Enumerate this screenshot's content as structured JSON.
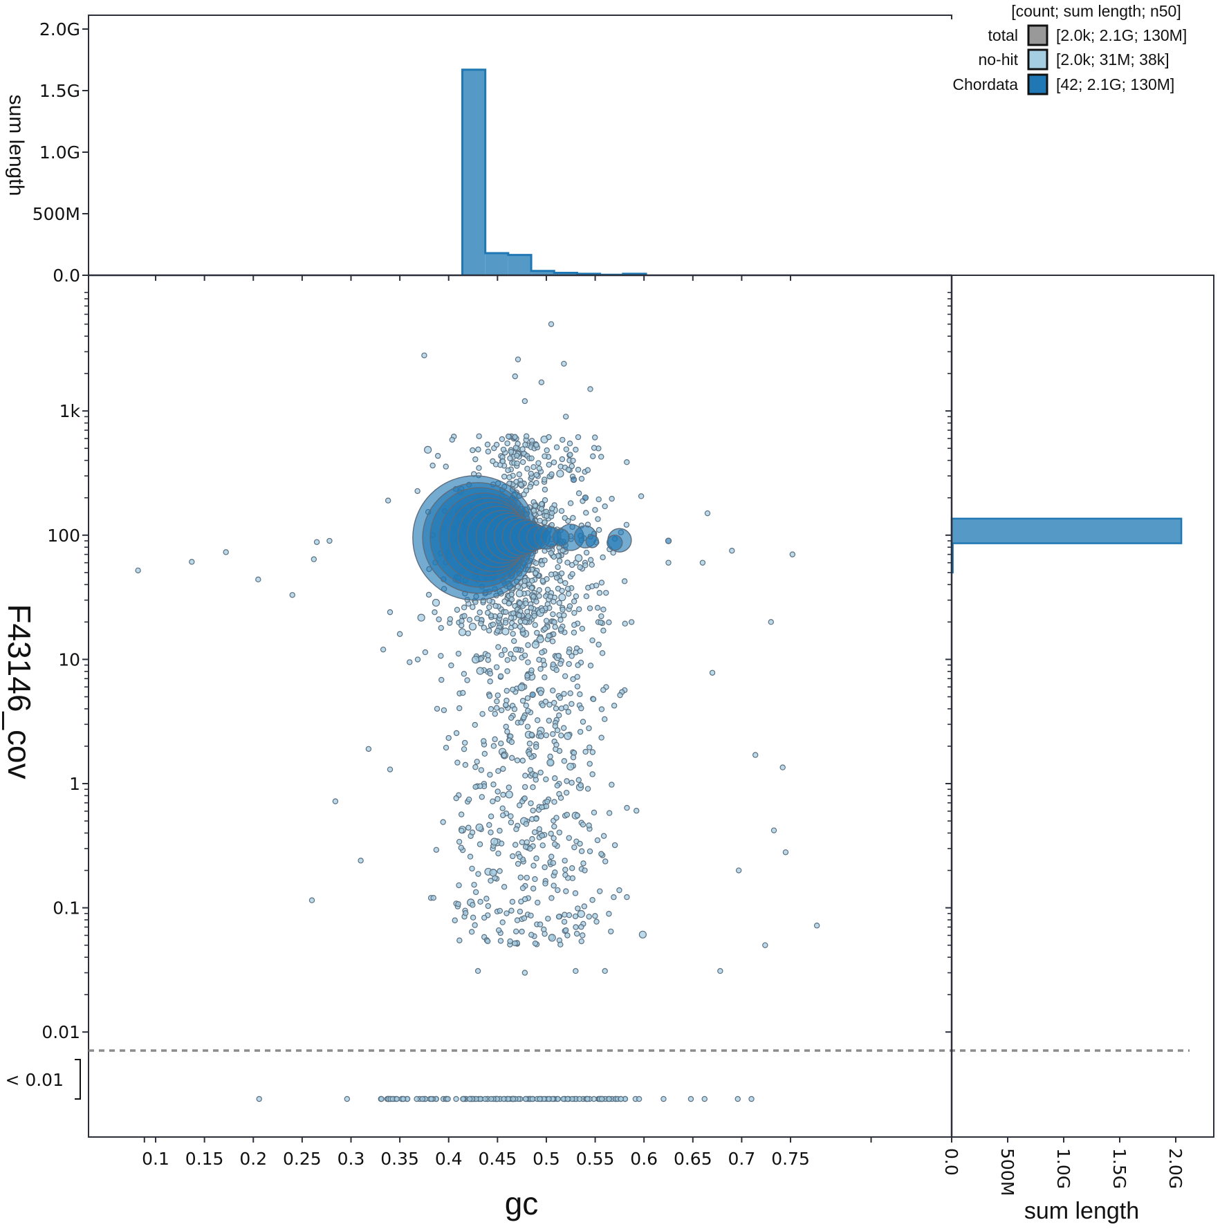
{
  "chart_data": {
    "type": "scatter",
    "title": "",
    "xlabel": "gc",
    "ylabel": "F43146_cov",
    "x_ticks": [
      "0.1",
      "0.15",
      "0.2",
      "0.25",
      "0.3",
      "0.35",
      "0.4",
      "0.45",
      "0.5",
      "0.55",
      "0.6",
      "0.65",
      "0.7",
      "0.75"
    ],
    "x_tick_values": [
      0.1,
      0.15,
      0.2,
      0.25,
      0.3,
      0.35,
      0.4,
      0.45,
      0.5,
      0.55,
      0.6,
      0.65,
      0.7,
      0.75
    ],
    "xlim": [
      0.03,
      0.915
    ],
    "y_scale": "log",
    "y_ticks": [
      "1k",
      "100",
      "10",
      "1",
      "0.1",
      "0.01"
    ],
    "y_tick_values": [
      1000,
      100,
      10,
      1,
      0.1,
      0.01
    ],
    "ylim": [
      0.0008,
      9000
    ],
    "below_threshold_label": "< 0.01",
    "grid": false,
    "legend": {
      "position": "top-right",
      "header": "[count; sum length; n50]",
      "entries": [
        {
          "name": "total",
          "stats": "[2.0k; 2.1G; 130M]",
          "color": "#999999"
        },
        {
          "name": "no-hit",
          "stats": "[2.0k; 31M; 38k]",
          "color": "#a6cee3"
        },
        {
          "name": "Chordata",
          "stats": "[42; 2.1G; 130M]",
          "color": "#1f78b4"
        }
      ]
    },
    "series": [
      {
        "name": "Chordata",
        "color": "#1f78b4",
        "description": "large contigs (bubble size ~ length), clustered at cov ~100",
        "points": [
          {
            "gc": 0.427,
            "cov": 95,
            "r": 90
          },
          {
            "gc": 0.43,
            "cov": 95,
            "r": 80
          },
          {
            "gc": 0.432,
            "cov": 96,
            "r": 72
          },
          {
            "gc": 0.436,
            "cov": 96,
            "r": 64
          },
          {
            "gc": 0.44,
            "cov": 97,
            "r": 56
          },
          {
            "gc": 0.445,
            "cov": 97,
            "r": 50
          },
          {
            "gc": 0.45,
            "cov": 97,
            "r": 44
          },
          {
            "gc": 0.455,
            "cov": 97,
            "r": 38
          },
          {
            "gc": 0.462,
            "cov": 97,
            "r": 34
          },
          {
            "gc": 0.468,
            "cov": 97,
            "r": 30
          },
          {
            "gc": 0.474,
            "cov": 97,
            "r": 27
          },
          {
            "gc": 0.48,
            "cov": 97,
            "r": 24
          },
          {
            "gc": 0.486,
            "cov": 97,
            "r": 20
          },
          {
            "gc": 0.492,
            "cov": 96,
            "r": 17
          },
          {
            "gc": 0.5,
            "cov": 96,
            "r": 17
          },
          {
            "gc": 0.505,
            "cov": 97,
            "r": 14
          },
          {
            "gc": 0.515,
            "cov": 96,
            "r": 12
          },
          {
            "gc": 0.525,
            "cov": 96,
            "r": 19
          },
          {
            "gc": 0.54,
            "cov": 97,
            "r": 16
          },
          {
            "gc": 0.547,
            "cov": 89,
            "r": 9
          },
          {
            "gc": 0.575,
            "cov": 91,
            "r": 17
          },
          {
            "gc": 0.57,
            "cov": 87,
            "r": 11
          },
          {
            "gc": 0.528,
            "cov": 280,
            "r": 4
          },
          {
            "gc": 0.54,
            "cov": 200,
            "r": 4
          },
          {
            "gc": 0.625,
            "cov": 90,
            "r": 4
          },
          {
            "gc": 0.486,
            "cov": 5.2,
            "r": 4
          }
        ]
      },
      {
        "name": "no-hit",
        "color": "#a6cee3",
        "description": "~2.0k small contigs spread gc 0.3-0.72, cov 0.03-2000; many below 0.01 at gc 0.3-0.71",
        "points": [
          {
            "gc": 0.505,
            "cov": 5000
          },
          {
            "gc": 0.375,
            "cov": 2800
          },
          {
            "gc": 0.518,
            "cov": 2400
          },
          {
            "gc": 0.471,
            "cov": 2600
          },
          {
            "gc": 0.468,
            "cov": 1900
          },
          {
            "gc": 0.495,
            "cov": 1700
          },
          {
            "gc": 0.545,
            "cov": 1500
          },
          {
            "gc": 0.478,
            "cov": 1200
          },
          {
            "gc": 0.52,
            "cov": 900
          },
          {
            "gc": 0.082,
            "cov": 52
          },
          {
            "gc": 0.137,
            "cov": 61
          },
          {
            "gc": 0.172,
            "cov": 73
          },
          {
            "gc": 0.205,
            "cov": 44
          },
          {
            "gc": 0.24,
            "cov": 33
          },
          {
            "gc": 0.262,
            "cov": 64
          },
          {
            "gc": 0.265,
            "cov": 88
          },
          {
            "gc": 0.278,
            "cov": 90
          },
          {
            "gc": 0.338,
            "cov": 190
          },
          {
            "gc": 0.34,
            "cov": 24
          },
          {
            "gc": 0.35,
            "cov": 16
          },
          {
            "gc": 0.333,
            "cov": 12
          },
          {
            "gc": 0.36,
            "cov": 9.5
          },
          {
            "gc": 0.318,
            "cov": 1.9
          },
          {
            "gc": 0.34,
            "cov": 1.3
          },
          {
            "gc": 0.284,
            "cov": 0.72
          },
          {
            "gc": 0.31,
            "cov": 0.24
          },
          {
            "gc": 0.26,
            "cov": 0.115
          },
          {
            "gc": 0.625,
            "cov": 60
          },
          {
            "gc": 0.66,
            "cov": 60
          },
          {
            "gc": 0.665,
            "cov": 150
          },
          {
            "gc": 0.69,
            "cov": 75
          },
          {
            "gc": 0.73,
            "cov": 20
          },
          {
            "gc": 0.752,
            "cov": 70
          },
          {
            "gc": 0.67,
            "cov": 7.8
          },
          {
            "gc": 0.714,
            "cov": 1.7
          },
          {
            "gc": 0.742,
            "cov": 1.35
          },
          {
            "gc": 0.733,
            "cov": 0.42
          },
          {
            "gc": 0.745,
            "cov": 0.28
          },
          {
            "gc": 0.697,
            "cov": 0.2
          },
          {
            "gc": 0.724,
            "cov": 0.05
          },
          {
            "gc": 0.777,
            "cov": 0.072
          },
          {
            "gc": 0.678,
            "cov": 0.031
          },
          {
            "gc": 0.43,
            "cov": 0.031
          },
          {
            "gc": 0.478,
            "cov": 0.03
          },
          {
            "gc": 0.53,
            "cov": 0.031
          },
          {
            "gc": 0.56,
            "cov": 0.031
          },
          {
            "gc": 0.206,
            "cov": "<0.01"
          },
          {
            "gc": 0.296,
            "cov": "<0.01"
          },
          {
            "gc": 0.62,
            "cov": "<0.01"
          },
          {
            "gc": 0.648,
            "cov": "<0.01"
          },
          {
            "gc": 0.662,
            "cov": "<0.01"
          },
          {
            "gc": 0.696,
            "cov": "<0.01"
          },
          {
            "gc": 0.71,
            "cov": "<0.01"
          }
        ]
      }
    ],
    "top_histogram": {
      "type": "bar",
      "ylabel": "sum length",
      "y_ticks": [
        "0.0",
        "500M",
        "1.0G",
        "1.5G",
        "2.0G"
      ],
      "y_tick_values": [
        0,
        500000000,
        1000000000,
        1500000000,
        2000000000
      ],
      "ylim": [
        0,
        2100000000
      ],
      "bin_width": 0.0235,
      "bins": [
        {
          "gc_start": 0.414,
          "sum_length": 1670000000
        },
        {
          "gc_start": 0.4375,
          "sum_length": 180000000
        },
        {
          "gc_start": 0.461,
          "sum_length": 165000000
        },
        {
          "gc_start": 0.4845,
          "sum_length": 35000000
        },
        {
          "gc_start": 0.508,
          "sum_length": 20000000
        },
        {
          "gc_start": 0.5315,
          "sum_length": 12000000
        },
        {
          "gc_start": 0.555,
          "sum_length": 4000000
        },
        {
          "gc_start": 0.5785,
          "sum_length": 12000000
        }
      ]
    },
    "right_histogram": {
      "type": "bar",
      "xlabel": "sum length",
      "x_ticks": [
        "0.0",
        "500M",
        "1.0G",
        "1.5G",
        "2.0G"
      ],
      "x_tick_values": [
        0,
        500000000,
        1000000000,
        1500000000,
        2000000000
      ],
      "bins": [
        {
          "cov_range": [
            86,
            136
          ],
          "sum_length": 2050000000
        },
        {
          "cov_range": [
            50,
            86
          ],
          "sum_length": 10000000
        }
      ]
    }
  },
  "labels": {
    "x_axis_title": "gc",
    "y_axis_title": "F43146_cov",
    "top_hist_ylabel": "sum length",
    "right_hist_xlabel": "sum length",
    "below_threshold": "< 0.01",
    "legend_header": "[count; sum length; n50]",
    "legend_total": "total",
    "legend_total_stats": "[2.0k; 2.1G; 130M]",
    "legend_nohit": "no-hit",
    "legend_nohit_stats": "[2.0k; 31M; 38k]",
    "legend_chordata": "Chordata",
    "legend_chordata_stats": "[42; 2.1G; 130M]"
  },
  "colors": {
    "chordata": "#1f78b4",
    "nohit": "#a6cee3",
    "total": "#999999",
    "axis": "#2b2f3a",
    "threshold_line": "#8c8c8c"
  }
}
